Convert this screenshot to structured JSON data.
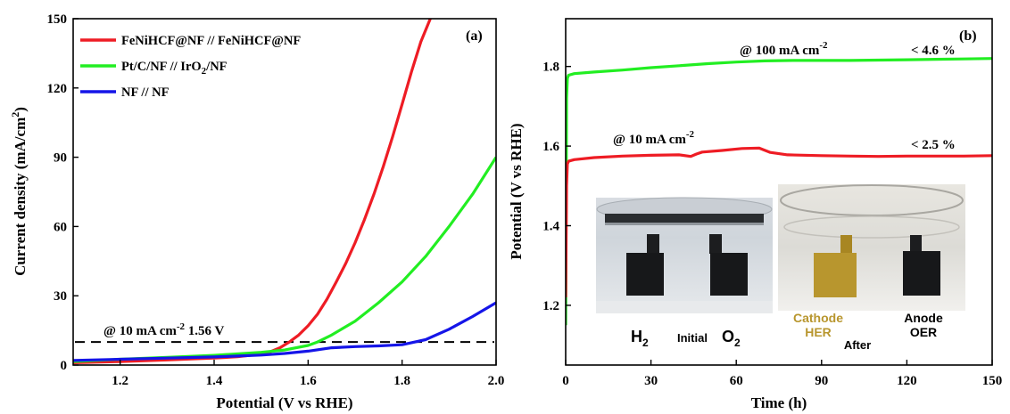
{
  "chart_data": [
    {
      "type": "line",
      "panel_label": "(a)",
      "xlabel": "Potential (V vs RHE)",
      "ylabel": "Current density (mA/cm",
      "ylabel_sup": "2",
      "ylabel_end": ")",
      "xlim": [
        1.1,
        2.0
      ],
      "ylim": [
        0,
        150
      ],
      "xticks": [
        1.2,
        1.4,
        1.6,
        1.8,
        2.0
      ],
      "xtick_labels": [
        "1.2",
        "1.4",
        "1.6",
        "1.8",
        "2.0"
      ],
      "yticks": [
        0,
        30,
        60,
        90,
        120,
        150
      ],
      "ytick_labels": [
        "0",
        "30",
        "60",
        "90",
        "120",
        "150"
      ],
      "legend": {
        "placement": "top-left",
        "entries": [
          {
            "text": "FeNiHCF@NF // FeNiHCF@NF",
            "color": "#ee1c24"
          },
          {
            "text_pre": "Pt/C/NF // IrO",
            "text_sub": "2",
            "text_post": "/NF",
            "color": "#22ee22"
          },
          {
            "text": "NF // NF",
            "color": "#1515e8"
          }
        ]
      },
      "reference_line": {
        "y": 10,
        "style": "dashed"
      },
      "annotation": {
        "pre": "@ 10 mA cm",
        "sup": "-2",
        "post": " 1.56 V"
      },
      "series": [
        {
          "color": "#ee1c24",
          "x": [
            1.1,
            1.2,
            1.3,
            1.4,
            1.45,
            1.5,
            1.52,
            1.54,
            1.56,
            1.58,
            1.6,
            1.62,
            1.64,
            1.66,
            1.68,
            1.7,
            1.72,
            1.74,
            1.76,
            1.78,
            1.8,
            1.82,
            1.84,
            1.86
          ],
          "y": [
            1.0,
            1.5,
            2.2,
            3.0,
            3.6,
            4.8,
            5.8,
            7.5,
            10.0,
            13.0,
            17.0,
            22.0,
            28.5,
            36.0,
            44.0,
            53.0,
            63.0,
            74.0,
            86.0,
            99.0,
            113.0,
            127.0,
            140.0,
            150.0
          ]
        },
        {
          "color": "#22ee22",
          "x": [
            1.1,
            1.2,
            1.3,
            1.4,
            1.5,
            1.55,
            1.6,
            1.62,
            1.65,
            1.7,
            1.75,
            1.8,
            1.85,
            1.9,
            1.95,
            2.0
          ],
          "y": [
            1.5,
            2.5,
            3.3,
            4.2,
            5.5,
            6.5,
            8.5,
            10.0,
            13.0,
            19.0,
            27.0,
            36.0,
            47.0,
            60.0,
            74.0,
            90.0
          ]
        },
        {
          "color": "#1515e8",
          "x": [
            1.1,
            1.2,
            1.3,
            1.4,
            1.5,
            1.55,
            1.6,
            1.65,
            1.7,
            1.75,
            1.8,
            1.85,
            1.9,
            1.95,
            2.0
          ],
          "y": [
            2.0,
            2.5,
            3.0,
            3.5,
            4.3,
            5.0,
            6.0,
            7.5,
            8.0,
            8.3,
            8.8,
            11.0,
            15.5,
            21.0,
            27.0
          ]
        }
      ]
    },
    {
      "type": "line",
      "panel_label": "(b)",
      "xlabel": "Time (h)",
      "ylabel": "Potential (V vs RHE)",
      "xlim": [
        0,
        150
      ],
      "ylim": [
        1.05,
        1.92
      ],
      "xticks": [
        0,
        30,
        60,
        90,
        120,
        150
      ],
      "xtick_labels": [
        "0",
        "30",
        "60",
        "90",
        "120",
        "150"
      ],
      "yticks": [
        1.2,
        1.4,
        1.6,
        1.8
      ],
      "ytick_labels": [
        "1.2",
        "1.4",
        "1.6",
        "1.8"
      ],
      "annotations": [
        {
          "pre": "@ 100 mA cm",
          "sup": "-2",
          "pct": "< 4.6 %"
        },
        {
          "pre": "@ 10 mA cm",
          "sup": "-2",
          "pct": "< 2.5 %"
        }
      ],
      "series": [
        {
          "color": "#22ee22",
          "x": [
            0,
            0.3,
            0.6,
            1,
            3,
            10,
            20,
            30,
            40,
            50,
            60,
            70,
            80,
            90,
            100,
            110,
            120,
            130,
            140,
            150
          ],
          "y": [
            1.15,
            1.72,
            1.77,
            1.778,
            1.782,
            1.786,
            1.791,
            1.797,
            1.802,
            1.807,
            1.811,
            1.814,
            1.815,
            1.815,
            1.815,
            1.816,
            1.817,
            1.818,
            1.819,
            1.82
          ]
        },
        {
          "color": "#ee1c24",
          "x": [
            0,
            0.3,
            0.6,
            1,
            3,
            10,
            20,
            30,
            40,
            44,
            46,
            48,
            55,
            62,
            68,
            72,
            78,
            90,
            100,
            110,
            120,
            130,
            140,
            150
          ],
          "y": [
            1.22,
            1.5,
            1.555,
            1.562,
            1.566,
            1.571,
            1.575,
            1.577,
            1.578,
            1.574,
            1.58,
            1.585,
            1.589,
            1.594,
            1.595,
            1.584,
            1.578,
            1.576,
            1.575,
            1.574,
            1.575,
            1.575,
            1.575,
            1.576
          ]
        }
      ],
      "inset_photos": {
        "initial": {
          "gas_left": "H",
          "gas_left_sub": "2",
          "gas_right": "O",
          "gas_right_sub": "2",
          "caption": "Initial"
        },
        "after": {
          "left_title": "Cathode",
          "left_sub": "HER",
          "right_title": "Anode",
          "right_sub": "OER",
          "caption": "After",
          "cathode_color": "#b8962e"
        }
      }
    }
  ]
}
